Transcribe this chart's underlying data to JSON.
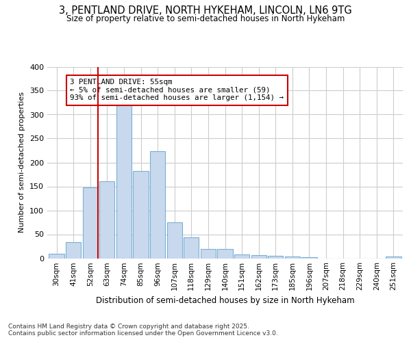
{
  "title1": "3, PENTLAND DRIVE, NORTH HYKEHAM, LINCOLN, LN6 9TG",
  "title2": "Size of property relative to semi-detached houses in North Hykeham",
  "xlabel": "Distribution of semi-detached houses by size in North Hykeham",
  "ylabel": "Number of semi-detached properties",
  "footer": "Contains HM Land Registry data © Crown copyright and database right 2025.\nContains public sector information licensed under the Open Government Licence v3.0.",
  "bin_labels": [
    "30sqm",
    "41sqm",
    "52sqm",
    "63sqm",
    "74sqm",
    "85sqm",
    "96sqm",
    "107sqm",
    "118sqm",
    "129sqm",
    "140sqm",
    "151sqm",
    "162sqm",
    "173sqm",
    "185sqm",
    "196sqm",
    "207sqm",
    "218sqm",
    "229sqm",
    "240sqm",
    "251sqm"
  ],
  "bin_values": [
    10,
    33,
    148,
    161,
    331,
    182,
    224,
    75,
    44,
    20,
    20,
    8,
    7,
    5,
    3,
    2,
    0,
    0,
    0,
    0,
    3
  ],
  "bar_color": "#c8d9ee",
  "bar_edge_color": "#7aafd4",
  "vline_x_idx": 2,
  "vline_color": "#cc0000",
  "annotation_text": "3 PENTLAND DRIVE: 55sqm\n← 5% of semi-detached houses are smaller (59)\n93% of semi-detached houses are larger (1,154) →",
  "annotation_box_edge_color": "#cc0000",
  "background_color": "#ffffff",
  "plot_bg_color": "#ffffff",
  "grid_color": "#cccccc",
  "ylim": [
    0,
    400
  ],
  "yticks": [
    0,
    50,
    100,
    150,
    200,
    250,
    300,
    350,
    400
  ]
}
